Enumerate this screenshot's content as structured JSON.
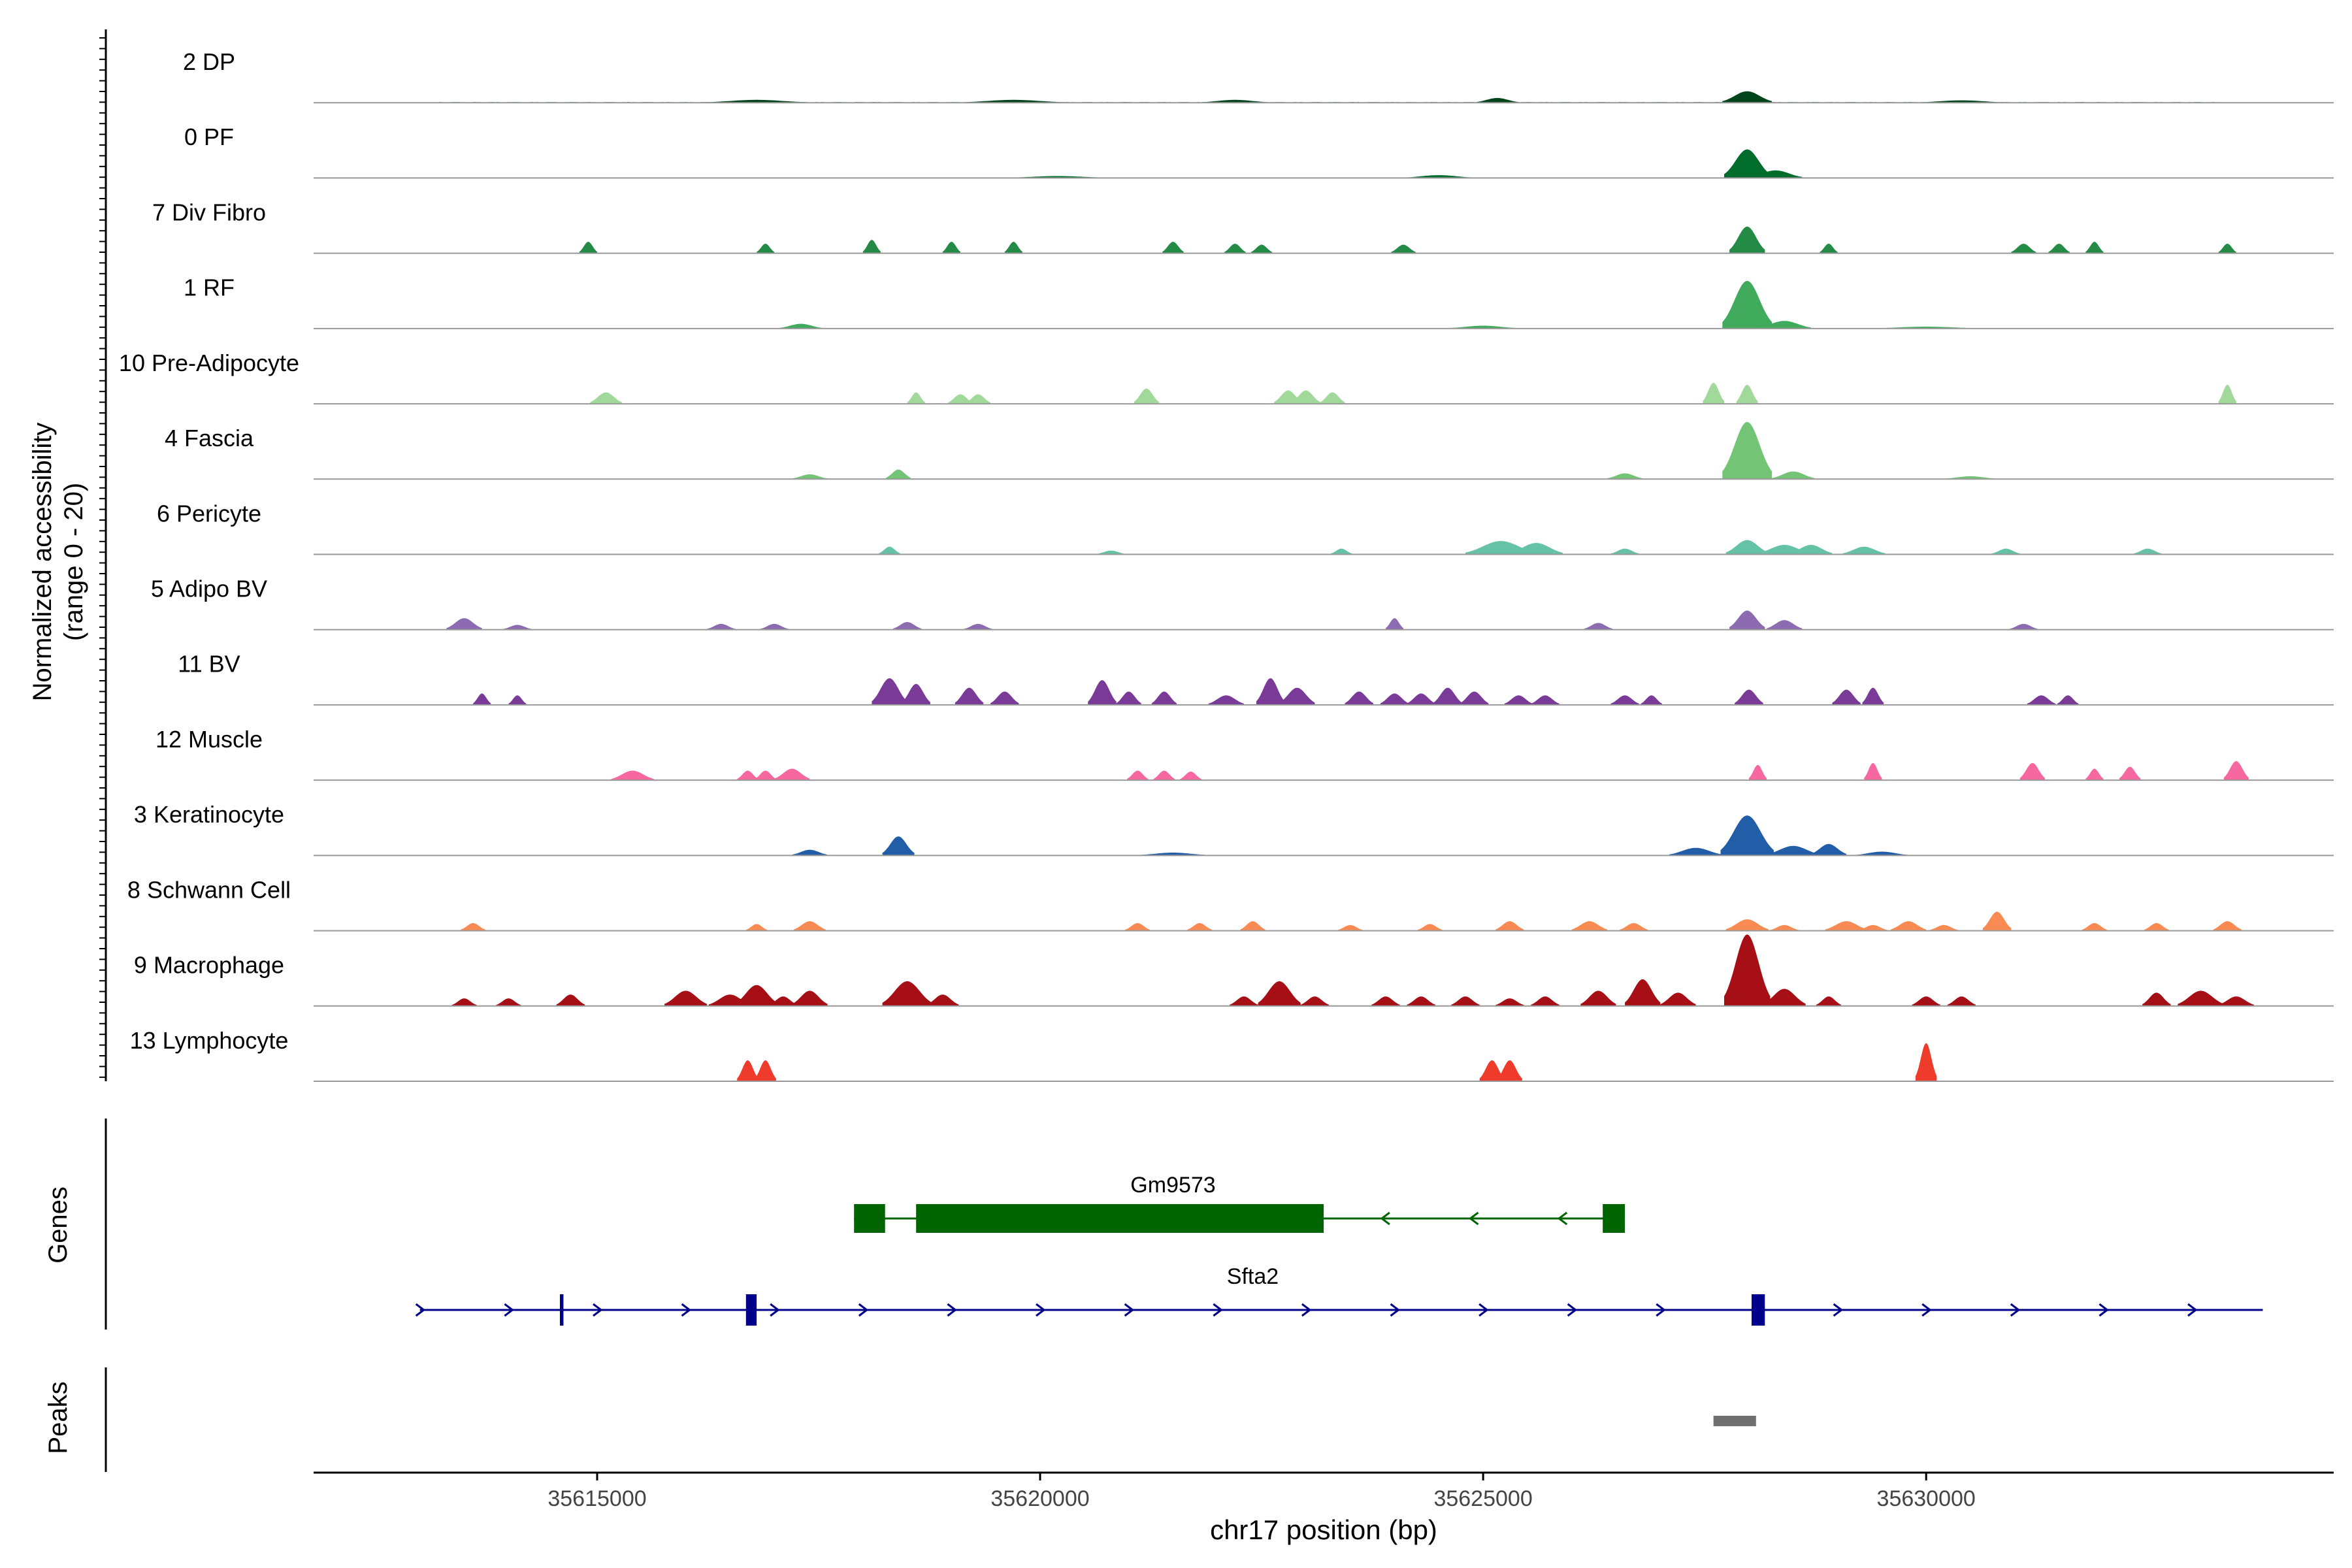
{
  "chart_data": {
    "type": "area",
    "title": "",
    "genome": "chr17",
    "xlabel": "chr17 position (bp)",
    "ylabel_line1": "Normalized accessibility",
    "ylabel_line2": "(range 0 - 20)",
    "ylim": [
      0,
      20
    ],
    "xlim": [
      35611800,
      35634600
    ],
    "xticks": [
      35615000,
      35620000,
      35625000,
      35630000
    ],
    "xtick_labels": [
      "35615000",
      "35620000",
      "35625000",
      "35630000"
    ],
    "panel_labels": {
      "genes": "Genes",
      "peaks": "Peaks"
    },
    "tracks": [
      {
        "name": "2 DP",
        "color": "#00441b",
        "baseline": 0.8,
        "peaks": [
          [
            35627980,
            12,
            140
          ],
          [
            35625160,
            5,
            120
          ],
          [
            35622200,
            3,
            200
          ],
          [
            35616800,
            3,
            300
          ],
          [
            35619700,
            3,
            300
          ],
          [
            35630400,
            2.5,
            250
          ]
        ],
        "spans": [
          [
            35613200,
            35633300
          ]
        ]
      },
      {
        "name": "0 PF",
        "color": "#006d2c",
        "baseline": 0.6,
        "peaks": [
          [
            35627980,
            30,
            130
          ],
          [
            35628300,
            8,
            150
          ],
          [
            35624500,
            3,
            200
          ],
          [
            35620200,
            2,
            300
          ]
        ],
        "spans": [
          [
            35613300,
            35633700
          ]
        ]
      },
      {
        "name": "7 Div Fibro",
        "color": "#238b45",
        "baseline": 0,
        "peaks": [
          [
            35627980,
            28,
            100
          ],
          [
            35614900,
            12,
            50
          ],
          [
            35616900,
            10,
            50
          ],
          [
            35618100,
            14,
            50
          ],
          [
            35619000,
            12,
            50
          ],
          [
            35619700,
            12,
            50
          ],
          [
            35621500,
            12,
            60
          ],
          [
            35622200,
            10,
            60
          ],
          [
            35622500,
            9,
            60
          ],
          [
            35624100,
            9,
            70
          ],
          [
            35628900,
            10,
            50
          ],
          [
            35631100,
            10,
            70
          ],
          [
            35631500,
            10,
            60
          ],
          [
            35631900,
            12,
            50
          ],
          [
            35633400,
            10,
            50
          ]
        ],
        "spans": []
      },
      {
        "name": "1 RF",
        "color": "#41ab5d",
        "baseline": 0.6,
        "peaks": [
          [
            35627980,
            50,
            140
          ],
          [
            35628400,
            8,
            150
          ],
          [
            35617300,
            5,
            120
          ],
          [
            35625000,
            3,
            200
          ],
          [
            35630000,
            2,
            300
          ]
        ],
        "spans": [
          [
            35613300,
            35633700
          ]
        ]
      },
      {
        "name": "10 Pre-Adipocyte",
        "color": "#a1d99b",
        "baseline": 0,
        "peaks": [
          [
            35615100,
            12,
            90
          ],
          [
            35618600,
            12,
            50
          ],
          [
            35619100,
            10,
            70
          ],
          [
            35619300,
            10,
            70
          ],
          [
            35621200,
            16,
            70
          ],
          [
            35622800,
            14,
            80
          ],
          [
            35623000,
            14,
            80
          ],
          [
            35623300,
            12,
            70
          ],
          [
            35627600,
            22,
            60
          ],
          [
            35627980,
            20,
            60
          ],
          [
            35633400,
            20,
            50
          ]
        ],
        "spans": []
      },
      {
        "name": "4 Fascia",
        "color": "#74c476",
        "baseline": 0.5,
        "peaks": [
          [
            35627980,
            60,
            140
          ],
          [
            35628500,
            8,
            120
          ],
          [
            35618400,
            10,
            70
          ],
          [
            35617400,
            5,
            100
          ],
          [
            35626600,
            6,
            100
          ],
          [
            35630500,
            3,
            150
          ]
        ],
        "spans": [
          [
            35613300,
            35633700
          ]
        ]
      },
      {
        "name": "6 Pericyte",
        "color": "#66c2a4",
        "baseline": 0.5,
        "peaks": [
          [
            35625200,
            14,
            200
          ],
          [
            35625600,
            12,
            150
          ],
          [
            35627980,
            15,
            120
          ],
          [
            35628400,
            10,
            150
          ],
          [
            35628700,
            10,
            120
          ],
          [
            35629300,
            8,
            120
          ],
          [
            35618300,
            8,
            60
          ],
          [
            35620800,
            4,
            80
          ],
          [
            35623400,
            6,
            60
          ],
          [
            35626600,
            6,
            80
          ],
          [
            35630900,
            6,
            80
          ],
          [
            35632500,
            6,
            80
          ]
        ],
        "spans": [
          [
            35618200,
            35633700
          ]
        ]
      },
      {
        "name": "5 Adipo BV",
        "color": "#8c6bb1",
        "baseline": 0.3,
        "peaks": [
          [
            35613500,
            12,
            100
          ],
          [
            35627980,
            20,
            100
          ],
          [
            35628400,
            10,
            100
          ],
          [
            35624000,
            12,
            50
          ],
          [
            35616400,
            6,
            80
          ],
          [
            35617000,
            6,
            80
          ],
          [
            35618500,
            8,
            80
          ],
          [
            35619300,
            6,
            80
          ],
          [
            35626300,
            7,
            80
          ],
          [
            35614100,
            5,
            80
          ],
          [
            35631100,
            6,
            80
          ]
        ],
        "spans": [
          [
            35613200,
            35633600
          ]
        ]
      },
      {
        "name": "11 BV",
        "color": "#7a3a97",
        "baseline": 0,
        "peaks": [
          [
            35613700,
            12,
            50
          ],
          [
            35614100,
            10,
            50
          ],
          [
            35618300,
            28,
            100
          ],
          [
            35618600,
            22,
            80
          ],
          [
            35619200,
            18,
            80
          ],
          [
            35619600,
            14,
            80
          ],
          [
            35620700,
            26,
            80
          ],
          [
            35621000,
            14,
            70
          ],
          [
            35621400,
            14,
            70
          ],
          [
            35622100,
            10,
            100
          ],
          [
            35622600,
            28,
            80
          ],
          [
            35622900,
            18,
            100
          ],
          [
            35623600,
            14,
            80
          ],
          [
            35624000,
            12,
            80
          ],
          [
            35624300,
            12,
            80
          ],
          [
            35624600,
            18,
            80
          ],
          [
            35624900,
            14,
            80
          ],
          [
            35625400,
            10,
            80
          ],
          [
            35625700,
            10,
            80
          ],
          [
            35626600,
            10,
            80
          ],
          [
            35626900,
            10,
            60
          ],
          [
            35628000,
            16,
            80
          ],
          [
            35629100,
            16,
            80
          ],
          [
            35629400,
            18,
            60
          ],
          [
            35631300,
            10,
            80
          ],
          [
            35631600,
            10,
            60
          ]
        ],
        "spans": []
      },
      {
        "name": "12 Muscle",
        "color": "#f768a1",
        "baseline": 0,
        "peaks": [
          [
            35615400,
            10,
            120
          ],
          [
            35616700,
            10,
            60
          ],
          [
            35616900,
            10,
            60
          ],
          [
            35617200,
            12,
            100
          ],
          [
            35621100,
            10,
            60
          ],
          [
            35621400,
            10,
            60
          ],
          [
            35621700,
            9,
            60
          ],
          [
            35628100,
            16,
            50
          ],
          [
            35629400,
            18,
            50
          ],
          [
            35631200,
            18,
            70
          ],
          [
            35631900,
            12,
            50
          ],
          [
            35632300,
            14,
            60
          ],
          [
            35633500,
            20,
            70
          ]
        ],
        "spans": []
      },
      {
        "name": "3 Keratinocyte",
        "color": "#225ea8",
        "baseline": 0.5,
        "peaks": [
          [
            35627980,
            42,
            150
          ],
          [
            35628500,
            10,
            150
          ],
          [
            35628900,
            12,
            100
          ],
          [
            35618400,
            20,
            90
          ],
          [
            35617400,
            6,
            100
          ],
          [
            35627400,
            8,
            150
          ],
          [
            35629500,
            4,
            150
          ],
          [
            35621500,
            3,
            200
          ]
        ],
        "spans": [
          [
            35613300,
            35633700
          ]
        ]
      },
      {
        "name": "8 Schwann Cell",
        "color": "#f98b52",
        "baseline": 0,
        "peaks": [
          [
            35613600,
            8,
            70
          ],
          [
            35616800,
            7,
            60
          ],
          [
            35617400,
            10,
            90
          ],
          [
            35621100,
            8,
            70
          ],
          [
            35621800,
            8,
            70
          ],
          [
            35622400,
            10,
            70
          ],
          [
            35623500,
            6,
            70
          ],
          [
            35624400,
            7,
            70
          ],
          [
            35625300,
            10,
            80
          ],
          [
            35626200,
            10,
            100
          ],
          [
            35626700,
            8,
            80
          ],
          [
            35627980,
            12,
            120
          ],
          [
            35628400,
            6,
            80
          ],
          [
            35629100,
            10,
            120
          ],
          [
            35629800,
            10,
            100
          ],
          [
            35630800,
            20,
            80
          ],
          [
            35631900,
            8,
            70
          ],
          [
            35632600,
            8,
            70
          ],
          [
            35633400,
            10,
            80
          ],
          [
            35629400,
            6,
            80
          ],
          [
            35630200,
            6,
            80
          ]
        ],
        "spans": []
      },
      {
        "name": "9 Macrophage",
        "color": "#a50f15",
        "baseline": 0,
        "peaks": [
          [
            35613500,
            8,
            70
          ],
          [
            35614000,
            8,
            70
          ],
          [
            35614700,
            12,
            80
          ],
          [
            35616000,
            16,
            120
          ],
          [
            35616500,
            12,
            120
          ],
          [
            35616800,
            22,
            120
          ],
          [
            35617100,
            10,
            80
          ],
          [
            35617400,
            16,
            100
          ],
          [
            35618500,
            26,
            140
          ],
          [
            35618900,
            12,
            90
          ],
          [
            35622300,
            10,
            80
          ],
          [
            35622700,
            26,
            120
          ],
          [
            35623100,
            10,
            80
          ],
          [
            35623900,
            10,
            80
          ],
          [
            35624300,
            10,
            80
          ],
          [
            35624800,
            10,
            80
          ],
          [
            35625300,
            8,
            80
          ],
          [
            35625700,
            10,
            80
          ],
          [
            35626300,
            16,
            100
          ],
          [
            35626800,
            28,
            100
          ],
          [
            35627200,
            14,
            100
          ],
          [
            35627980,
            75,
            130
          ],
          [
            35628400,
            18,
            120
          ],
          [
            35628900,
            10,
            70
          ],
          [
            35630000,
            10,
            80
          ],
          [
            35630400,
            10,
            80
          ],
          [
            35632600,
            14,
            80
          ],
          [
            35633100,
            16,
            130
          ],
          [
            35633500,
            10,
            100
          ]
        ],
        "spans": []
      },
      {
        "name": "13 Lymphocyte",
        "color": "#ef3b2c",
        "baseline": 0,
        "peaks": [
          [
            35616700,
            22,
            60
          ],
          [
            35616900,
            22,
            60
          ],
          [
            35625100,
            22,
            70
          ],
          [
            35625300,
            22,
            70
          ],
          [
            35630000,
            40,
            60
          ]
        ],
        "spans": []
      }
    ],
    "genes": [
      {
        "name": "Gm9573",
        "color": "#006400",
        "strand": "-",
        "start": 35617900,
        "end": 35626600,
        "exons": [
          [
            35617900,
            35618250
          ],
          [
            35618600,
            35623200
          ],
          [
            35626350,
            35626600
          ]
        ]
      },
      {
        "name": "Sfta2",
        "color": "#00008b",
        "strand": "+",
        "start": 35613000,
        "end": 35633800,
        "exons": [
          [
            35614580,
            35614620
          ],
          [
            35616680,
            35616800
          ],
          [
            35628030,
            35628180
          ]
        ]
      }
    ],
    "peak_regions": [
      {
        "start": 35627600,
        "end": 35628080,
        "color": "#707070"
      }
    ]
  }
}
